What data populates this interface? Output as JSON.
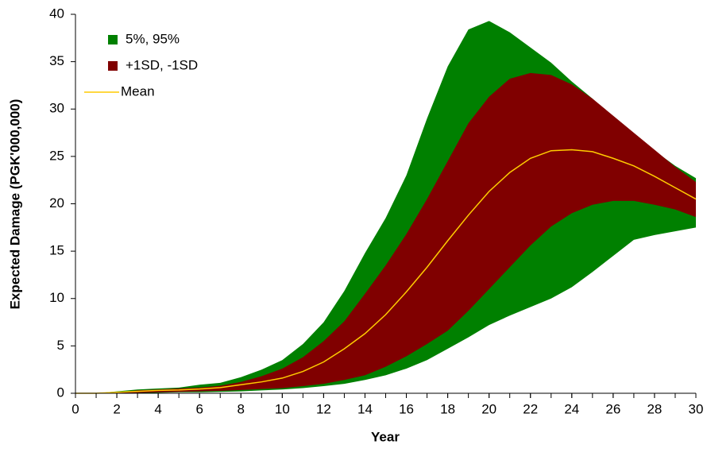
{
  "chart_data": {
    "type": "band",
    "x_label": "Year",
    "y_label": "Expected Damage (PGK'000,000)",
    "x": [
      0,
      1,
      2,
      3,
      4,
      5,
      6,
      7,
      8,
      9,
      10,
      11,
      12,
      13,
      14,
      15,
      16,
      17,
      18,
      19,
      20,
      21,
      22,
      23,
      24,
      25,
      26,
      27,
      28,
      29,
      30
    ],
    "series": [
      {
        "name": "5%, 95%",
        "color": "#008000",
        "upper": [
          0,
          0,
          0.2,
          0.4,
          0.5,
          0.6,
          0.9,
          1.1,
          1.7,
          2.5,
          3.5,
          5.2,
          7.5,
          10.8,
          14.8,
          18.5,
          23,
          29,
          34.5,
          38.4,
          39.3,
          38.1,
          36.5,
          34.9,
          32.9,
          31.1,
          29.1,
          27.3,
          25.6,
          24,
          22.7
        ],
        "lower": [
          0,
          0,
          0,
          0,
          0.05,
          0.1,
          0.1,
          0.15,
          0.2,
          0.3,
          0.4,
          0.55,
          0.75,
          1,
          1.4,
          1.9,
          2.6,
          3.5,
          4.7,
          5.9,
          7.2,
          8.2,
          9.1,
          10,
          11.2,
          12.8,
          14.5,
          16.2,
          16.7,
          17.1,
          17.5
        ]
      },
      {
        "name": "+1SD, -1SD",
        "color": "#800000",
        "upper": [
          0,
          0,
          0.1,
          0.3,
          0.4,
          0.5,
          0.6,
          0.8,
          1.2,
          1.8,
          2.6,
          3.8,
          5.5,
          7.6,
          10.5,
          13.5,
          16.8,
          20.5,
          24.5,
          28.5,
          31.3,
          33.2,
          33.8,
          33.6,
          32.6,
          31.1,
          29.3,
          27.5,
          25.7,
          23.9,
          22.3
        ],
        "lower": [
          0,
          0,
          0,
          0.05,
          0.1,
          0.15,
          0.2,
          0.25,
          0.35,
          0.45,
          0.55,
          0.75,
          1,
          1.4,
          1.9,
          2.8,
          3.9,
          5.2,
          6.6,
          8.7,
          11,
          13.3,
          15.6,
          17.6,
          19,
          19.9,
          20.3,
          20.3,
          19.9,
          19.4,
          18.6
        ]
      },
      {
        "name": "Mean",
        "color": "#ffcc00",
        "values": [
          0,
          0,
          0.1,
          0.2,
          0.3,
          0.35,
          0.45,
          0.6,
          0.9,
          1.2,
          1.6,
          2.3,
          3.3,
          4.7,
          6.3,
          8.3,
          10.7,
          13.3,
          16.1,
          18.8,
          21.3,
          23.3,
          24.8,
          25.6,
          25.7,
          25.5,
          24.8,
          24,
          22.9,
          21.7,
          20.5
        ]
      }
    ],
    "xlim": [
      0,
      30
    ],
    "xticks": [
      0,
      2,
      4,
      6,
      8,
      10,
      12,
      14,
      16,
      18,
      20,
      22,
      24,
      26,
      28,
      30
    ],
    "ylim": [
      0,
      40
    ],
    "yticks": [
      0,
      5,
      10,
      15,
      20,
      25,
      30,
      35,
      40
    ],
    "grid": false
  }
}
